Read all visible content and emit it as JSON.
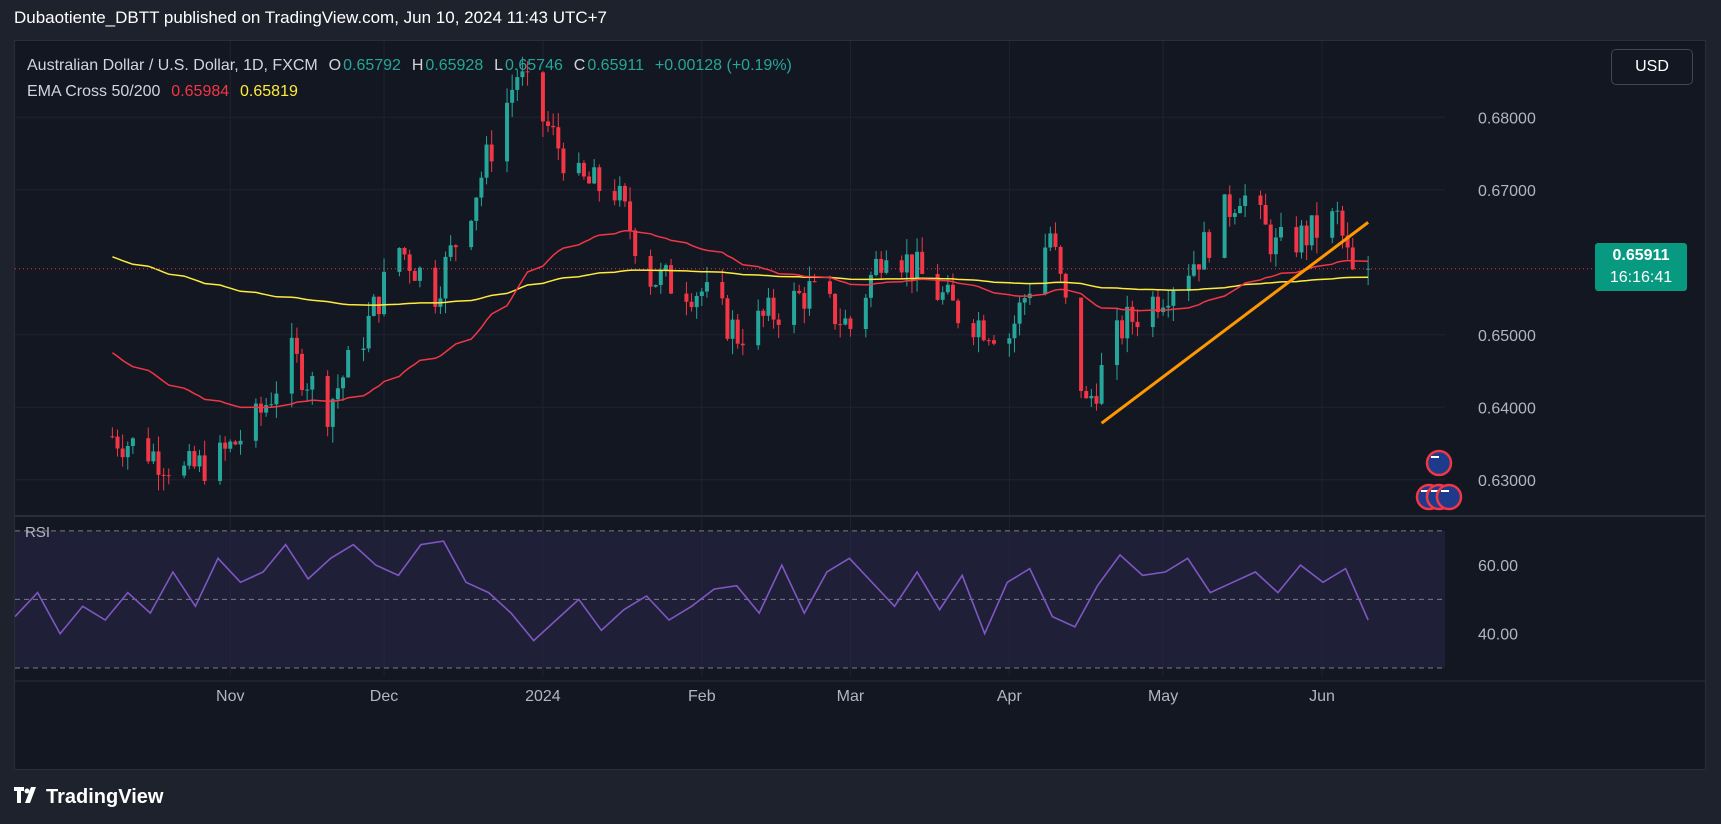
{
  "header": {
    "published_line": "Dubaotiente_DBTT published on TradingView.com, Jun 10, 2024 11:43 UTC+7"
  },
  "legend": {
    "symbol": "Australian Dollar / U.S. Dollar, 1D, FXCM",
    "o_label": "O",
    "o_value": "0.65792",
    "h_label": "H",
    "h_value": "0.65928",
    "l_label": "L",
    "l_value": "0.65746",
    "c_label": "C",
    "c_value": "0.65911",
    "change": "+0.00128 (+0.19%)",
    "ema_label": "EMA Cross 50/200",
    "ema50": "0.65984",
    "ema200": "0.65819"
  },
  "currency_button": "USD",
  "last_price": {
    "price": "0.65911",
    "countdown": "16:16:41"
  },
  "rsi_label": "RSI",
  "footer": {
    "brand": "TradingView",
    "logo_icon": "tradingview-logo-icon"
  },
  "colors": {
    "up": "#26a69a",
    "down": "#f23645",
    "ema50": "#f23645",
    "ema200": "#ffeb3b",
    "trendline": "#ff9800",
    "rsi": "#7e57c2",
    "background": "#131722"
  },
  "chart_data": [
    {
      "type": "candlestick",
      "title": "Australian Dollar / U.S. Dollar, 1D, FXCM",
      "y_ticks": [
        "0.68000",
        "0.67000",
        "0.65000",
        "0.64000",
        "0.63000"
      ],
      "ylim": [
        0.625,
        0.685
      ],
      "x_ticks": [
        "Nov",
        "Dec",
        "2024",
        "Feb",
        "Mar",
        "Apr",
        "May",
        "Jun"
      ],
      "grid": true,
      "series": [
        {
          "name": "EMA Cross 50/200",
          "values_label": "0.65984"
        },
        {
          "name": "",
          "values_label": "0.65819"
        }
      ],
      "close_trend": [
        {
          "date": "2023-10-09",
          "close": 0.636
        },
        {
          "date": "2023-10-16",
          "close": 0.634
        },
        {
          "date": "2023-10-23",
          "close": 0.631
        },
        {
          "date": "2023-10-30",
          "close": 0.633
        },
        {
          "date": "2023-11-06",
          "close": 0.638
        },
        {
          "date": "2023-11-13",
          "close": 0.647
        },
        {
          "date": "2023-11-20",
          "close": 0.64
        },
        {
          "date": "2023-11-27",
          "close": 0.65
        },
        {
          "date": "2023-12-04",
          "close": 0.662
        },
        {
          "date": "2023-12-11",
          "close": 0.656
        },
        {
          "date": "2023-12-18",
          "close": 0.668
        },
        {
          "date": "2023-12-27",
          "close": 0.686
        },
        {
          "date": "2024-01-08",
          "close": 0.671
        },
        {
          "date": "2024-01-15",
          "close": 0.67
        },
        {
          "date": "2024-01-22",
          "close": 0.658
        },
        {
          "date": "2024-02-01",
          "close": 0.656
        },
        {
          "date": "2024-02-08",
          "close": 0.65
        },
        {
          "date": "2024-02-15",
          "close": 0.653
        },
        {
          "date": "2024-02-22",
          "close": 0.656
        },
        {
          "date": "2024-03-01",
          "close": 0.651
        },
        {
          "date": "2024-03-08",
          "close": 0.663
        },
        {
          "date": "2024-03-15",
          "close": 0.658
        },
        {
          "date": "2024-03-22",
          "close": 0.653
        },
        {
          "date": "2024-04-01",
          "close": 0.65
        },
        {
          "date": "2024-04-09",
          "close": 0.664
        },
        {
          "date": "2024-04-16",
          "close": 0.64
        },
        {
          "date": "2024-04-23",
          "close": 0.651
        },
        {
          "date": "2024-05-01",
          "close": 0.656
        },
        {
          "date": "2024-05-08",
          "close": 0.661
        },
        {
          "date": "2024-05-16",
          "close": 0.67
        },
        {
          "date": "2024-05-23",
          "close": 0.662
        },
        {
          "date": "2024-05-30",
          "close": 0.664
        },
        {
          "date": "2024-06-04",
          "close": 0.666
        },
        {
          "date": "2024-06-07",
          "close": 0.658
        },
        {
          "date": "2024-06-10",
          "close": 0.65911
        }
      ],
      "trendline": {
        "from": {
          "date": "2024-04-19",
          "price": 0.6378
        },
        "to": {
          "date": "2024-06-10",
          "price": 0.6655
        }
      }
    },
    {
      "type": "line",
      "title": "RSI",
      "y_ticks": [
        "60.00",
        "40.00"
      ],
      "ylim": [
        30,
        72
      ],
      "values": [
        45,
        52,
        40,
        48,
        44,
        52,
        46,
        58,
        48,
        62,
        55,
        58,
        66,
        56,
        62,
        66,
        60,
        57,
        66,
        67,
        55,
        52,
        46,
        38,
        44,
        50,
        41,
        47,
        51,
        44,
        48,
        53,
        54,
        46,
        60,
        46,
        58,
        62,
        55,
        48,
        58,
        47,
        57,
        40,
        55,
        59,
        45,
        42,
        54,
        63,
        57,
        58,
        62,
        52,
        55,
        58,
        52,
        60,
        55,
        59,
        44
      ]
    }
  ]
}
